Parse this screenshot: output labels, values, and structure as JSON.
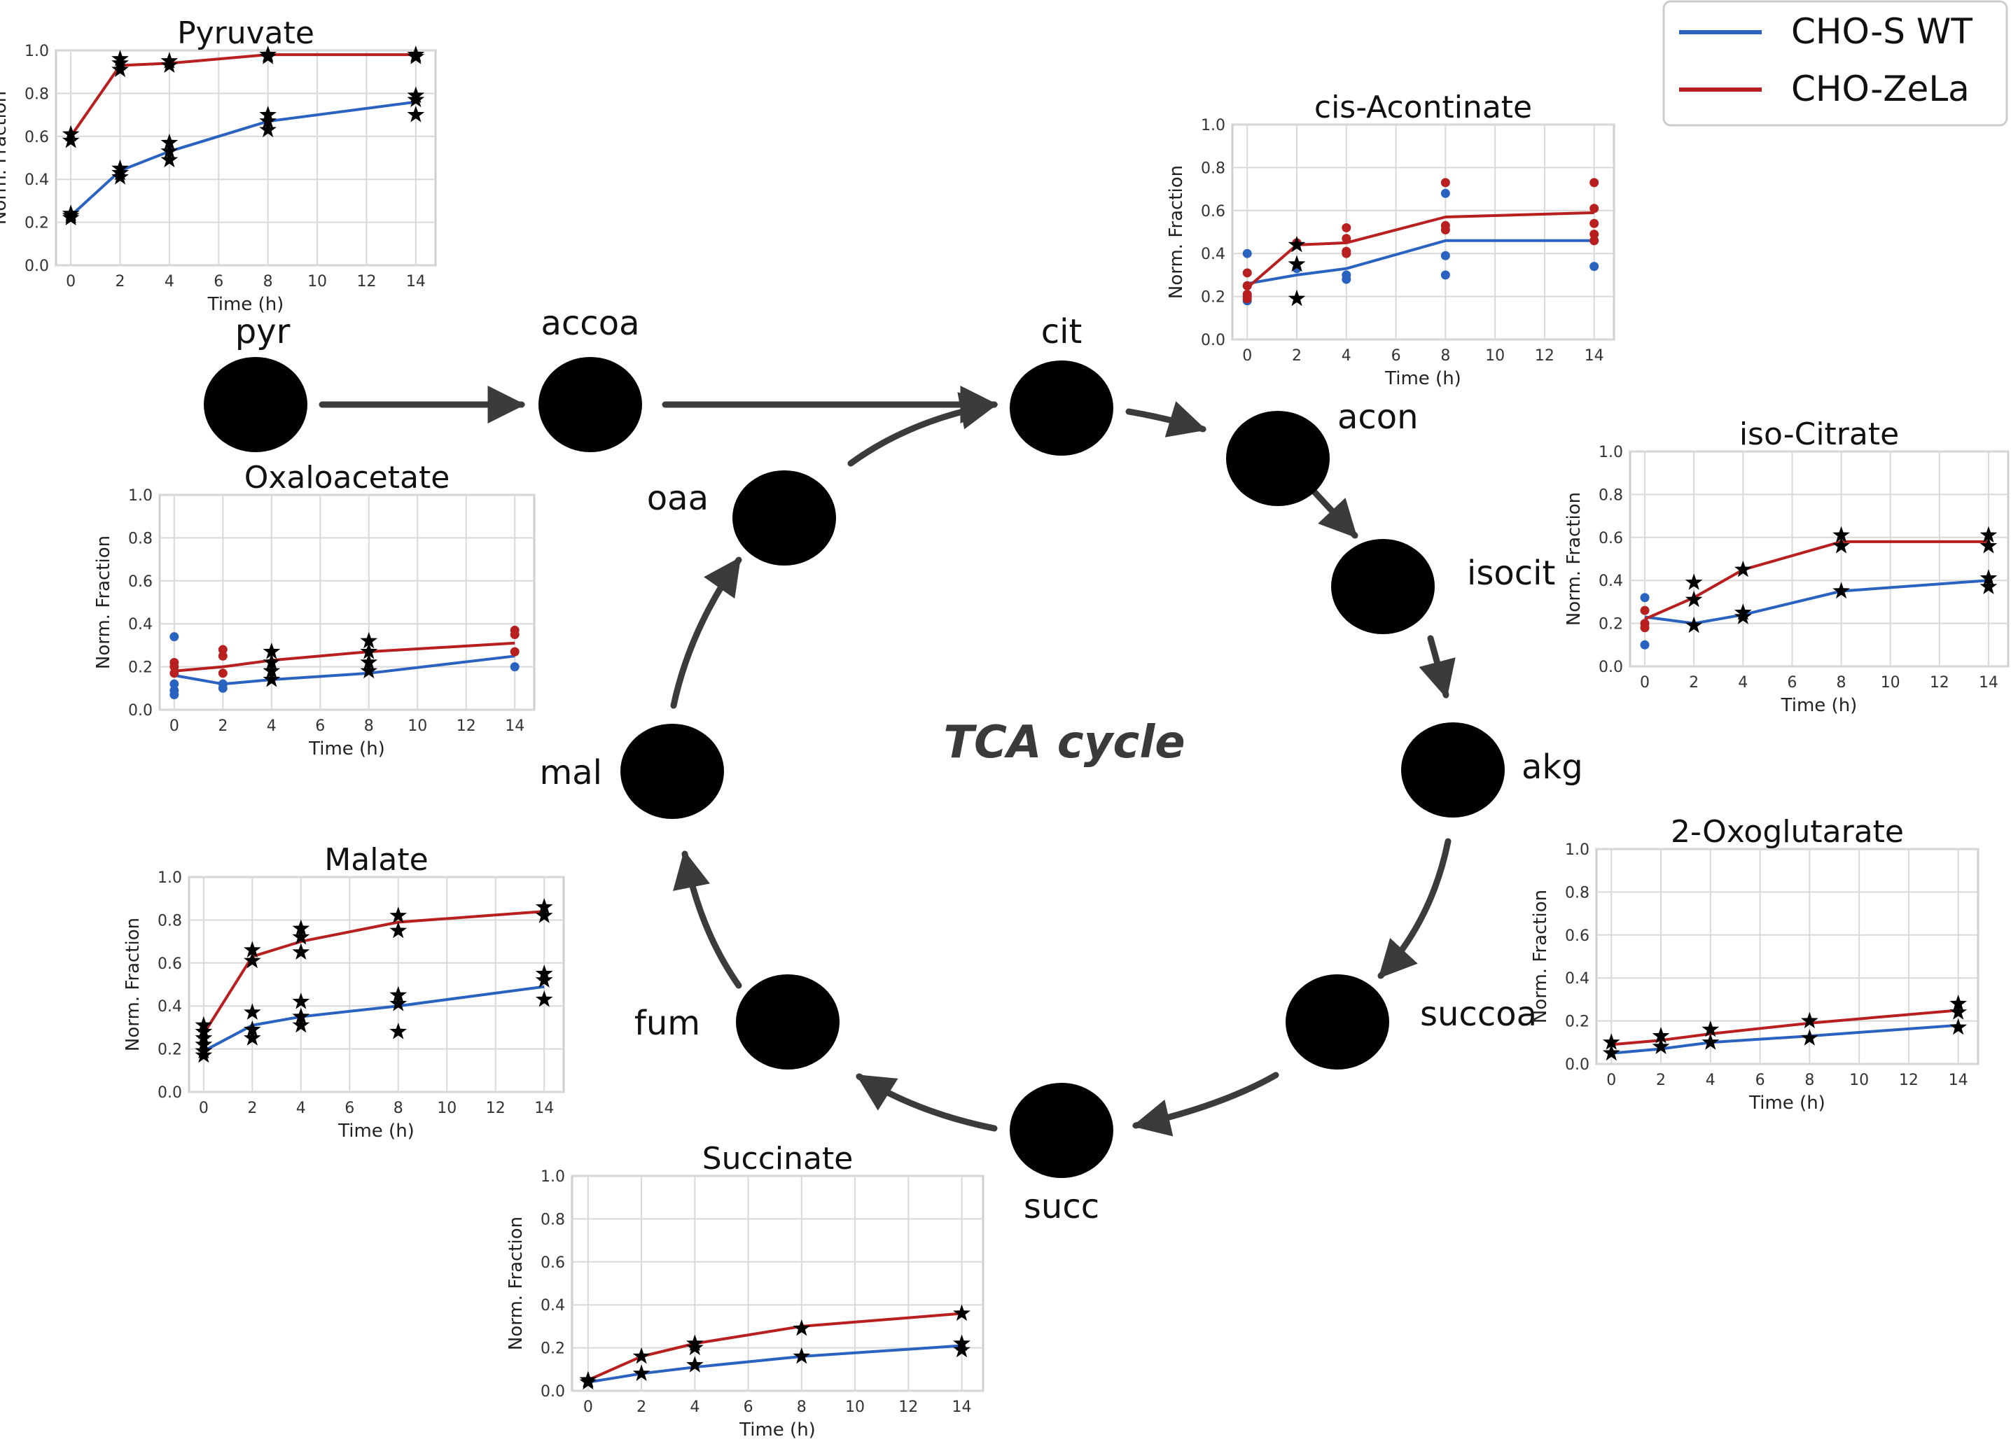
{
  "center_label": "TCA cycle",
  "legend": {
    "items": [
      {
        "label": "CHO-S WT",
        "color": "#2a62c0"
      },
      {
        "label": "CHO-ZeLa",
        "color": "#b81f1f"
      }
    ]
  },
  "nodes": [
    {
      "id": "pyr",
      "label": "pyr"
    },
    {
      "id": "accoa",
      "label": "accoa"
    },
    {
      "id": "cit",
      "label": "cit"
    },
    {
      "id": "acon",
      "label": "acon"
    },
    {
      "id": "isocit",
      "label": "isocit"
    },
    {
      "id": "akg",
      "label": "akg"
    },
    {
      "id": "succoa",
      "label": "succoa"
    },
    {
      "id": "succ",
      "label": "succ"
    },
    {
      "id": "fum",
      "label": "fum"
    },
    {
      "id": "mal",
      "label": "mal"
    },
    {
      "id": "oaa",
      "label": "oaa"
    }
  ],
  "edges": [
    {
      "from": "pyr",
      "to": "accoa"
    },
    {
      "from": "accoa",
      "to": "cit"
    },
    {
      "from": "oaa",
      "to": "cit"
    },
    {
      "from": "cit",
      "to": "acon"
    },
    {
      "from": "acon",
      "to": "isocit"
    },
    {
      "from": "isocit",
      "to": "akg"
    },
    {
      "from": "akg",
      "to": "succoa"
    },
    {
      "from": "succoa",
      "to": "succ"
    },
    {
      "from": "succ",
      "to": "fum"
    },
    {
      "from": "fum",
      "to": "mal"
    },
    {
      "from": "mal",
      "to": "oaa"
    }
  ],
  "chart_data": [
    {
      "type": "line",
      "title": "Pyruvate",
      "xlabel": "Time (h)",
      "ylabel": "Norm. Fraction",
      "xlim": [
        -0.6,
        14.8
      ],
      "ylim": [
        0,
        1
      ],
      "xticks": [
        0,
        2,
        4,
        6,
        8,
        10,
        12,
        14
      ],
      "yticks": [
        0.0,
        0.2,
        0.4,
        0.6,
        0.8,
        1.0
      ],
      "series": [
        {
          "name": "CHO-S WT",
          "x": [
            0,
            2,
            4,
            8,
            14
          ],
          "y": [
            0.23,
            0.44,
            0.53,
            0.67,
            0.76
          ]
        },
        {
          "name": "CHO-ZeLa",
          "x": [
            0,
            2,
            4,
            8,
            14
          ],
          "y": [
            0.6,
            0.93,
            0.94,
            0.98,
            0.98
          ]
        }
      ],
      "measured": [
        {
          "marker": "star",
          "color": "#000000",
          "x": [
            0,
            0,
            0,
            2,
            2,
            2,
            4,
            4,
            4,
            8,
            8,
            8,
            14,
            14,
            14,
            0,
            0,
            2,
            2,
            2,
            4,
            4,
            8,
            8,
            14,
            14
          ],
          "y": [
            0.22,
            0.23,
            0.24,
            0.41,
            0.43,
            0.45,
            0.49,
            0.53,
            0.57,
            0.63,
            0.67,
            0.7,
            0.7,
            0.77,
            0.79,
            0.58,
            0.61,
            0.91,
            0.94,
            0.96,
            0.93,
            0.95,
            0.97,
            0.98,
            0.97,
            0.98
          ]
        }
      ]
    },
    {
      "type": "line",
      "title": "cis-Acontinate",
      "xlabel": "Time (h)",
      "ylabel": "Norm. Fraction",
      "xlim": [
        -0.6,
        14.8
      ],
      "ylim": [
        0,
        1
      ],
      "xticks": [
        0,
        2,
        4,
        6,
        8,
        10,
        12,
        14
      ],
      "yticks": [
        0.0,
        0.2,
        0.4,
        0.6,
        0.8,
        1.0
      ],
      "series": [
        {
          "name": "CHO-S WT",
          "x": [
            0,
            2,
            4,
            8,
            14
          ],
          "y": [
            0.26,
            0.3,
            0.33,
            0.46,
            0.46
          ]
        },
        {
          "name": "CHO-ZeLa",
          "x": [
            0,
            2,
            4,
            8,
            14
          ],
          "y": [
            0.24,
            0.44,
            0.45,
            0.57,
            0.59
          ]
        }
      ],
      "measured": [
        {
          "marker": "dot",
          "color": "#2a62c0",
          "x": [
            0,
            0,
            0,
            0,
            2,
            4,
            4,
            8,
            8,
            8,
            14,
            14
          ],
          "y": [
            0.4,
            0.25,
            0.2,
            0.18,
            0.33,
            0.3,
            0.28,
            0.68,
            0.39,
            0.3,
            0.46,
            0.34
          ]
        },
        {
          "marker": "dot",
          "color": "#b81f1f",
          "x": [
            0,
            0,
            0,
            0,
            2,
            4,
            4,
            4,
            4,
            8,
            8,
            8,
            14,
            14,
            14,
            14,
            14
          ],
          "y": [
            0.31,
            0.25,
            0.21,
            0.19,
            0.45,
            0.52,
            0.47,
            0.41,
            0.4,
            0.73,
            0.53,
            0.51,
            0.73,
            0.61,
            0.54,
            0.49,
            0.46
          ]
        },
        {
          "marker": "star",
          "color": "#000000",
          "x": [
            2,
            2,
            2
          ],
          "y": [
            0.44,
            0.35,
            0.19
          ]
        }
      ]
    },
    {
      "type": "line",
      "title": "iso-Citrate",
      "xlabel": "Time (h)",
      "ylabel": "Norm. Fraction",
      "xlim": [
        -0.6,
        14.8
      ],
      "ylim": [
        0,
        1
      ],
      "xticks": [
        0,
        2,
        4,
        6,
        8,
        10,
        12,
        14
      ],
      "yticks": [
        0.0,
        0.2,
        0.4,
        0.6,
        0.8,
        1.0
      ],
      "series": [
        {
          "name": "CHO-S WT",
          "x": [
            0,
            2,
            4,
            8,
            14
          ],
          "y": [
            0.23,
            0.2,
            0.24,
            0.35,
            0.4
          ]
        },
        {
          "name": "CHO-ZeLa",
          "x": [
            0,
            2,
            4,
            8,
            14
          ],
          "y": [
            0.22,
            0.32,
            0.45,
            0.58,
            0.58
          ]
        }
      ],
      "measured": [
        {
          "marker": "dot",
          "color": "#2a62c0",
          "x": [
            0,
            0
          ],
          "y": [
            0.32,
            0.1
          ]
        },
        {
          "marker": "dot",
          "color": "#b81f1f",
          "x": [
            0,
            0,
            0
          ],
          "y": [
            0.26,
            0.2,
            0.18
          ]
        },
        {
          "marker": "star",
          "color": "#000000",
          "x": [
            2,
            2,
            2,
            4,
            4,
            4,
            8,
            8,
            8,
            14,
            14,
            14,
            14
          ],
          "y": [
            0.39,
            0.31,
            0.19,
            0.45,
            0.25,
            0.23,
            0.61,
            0.56,
            0.35,
            0.61,
            0.56,
            0.41,
            0.37
          ]
        }
      ]
    },
    {
      "type": "line",
      "title": "Oxaloacetate",
      "xlabel": "Time (h)",
      "ylabel": "Norm. Fraction",
      "xlim": [
        -0.6,
        14.8
      ],
      "ylim": [
        0,
        1
      ],
      "xticks": [
        0,
        2,
        4,
        6,
        8,
        10,
        12,
        14
      ],
      "yticks": [
        0.0,
        0.2,
        0.4,
        0.6,
        0.8,
        1.0
      ],
      "series": [
        {
          "name": "CHO-S WT",
          "x": [
            0,
            2,
            4,
            8,
            14
          ],
          "y": [
            0.16,
            0.12,
            0.14,
            0.17,
            0.25
          ]
        },
        {
          "name": "CHO-ZeLa",
          "x": [
            0,
            2,
            4,
            8,
            14
          ],
          "y": [
            0.18,
            0.2,
            0.23,
            0.27,
            0.31
          ]
        }
      ],
      "measured": [
        {
          "marker": "dot",
          "color": "#2a62c0",
          "x": [
            0,
            0,
            0,
            0,
            2,
            2,
            14
          ],
          "y": [
            0.34,
            0.12,
            0.09,
            0.07,
            0.12,
            0.1,
            0.2
          ]
        },
        {
          "marker": "dot",
          "color": "#b81f1f",
          "x": [
            0,
            0,
            0,
            2,
            2,
            2,
            14,
            14,
            14
          ],
          "y": [
            0.22,
            0.2,
            0.17,
            0.28,
            0.25,
            0.17,
            0.37,
            0.35,
            0.27
          ]
        },
        {
          "marker": "star",
          "color": "#000000",
          "x": [
            4,
            4,
            4,
            4,
            8,
            8,
            8,
            8
          ],
          "y": [
            0.27,
            0.22,
            0.18,
            0.14,
            0.32,
            0.27,
            0.22,
            0.18
          ]
        }
      ]
    },
    {
      "type": "line",
      "title": "Malate",
      "xlabel": "Time (h)",
      "ylabel": "Norm. Fraction",
      "xlim": [
        -0.6,
        14.8
      ],
      "ylim": [
        0,
        1
      ],
      "xticks": [
        0,
        2,
        4,
        6,
        8,
        10,
        12,
        14
      ],
      "yticks": [
        0.0,
        0.2,
        0.4,
        0.6,
        0.8,
        1.0
      ],
      "series": [
        {
          "name": "CHO-S WT",
          "x": [
            0,
            2,
            4,
            8,
            14
          ],
          "y": [
            0.19,
            0.31,
            0.35,
            0.4,
            0.49
          ]
        },
        {
          "name": "CHO-ZeLa",
          "x": [
            0,
            2,
            4,
            8,
            14
          ],
          "y": [
            0.27,
            0.63,
            0.7,
            0.79,
            0.84
          ]
        }
      ],
      "measured": [
        {
          "marker": "star",
          "color": "#000000",
          "x": [
            0,
            0,
            0,
            0,
            0,
            0,
            2,
            2,
            2,
            2,
            2,
            4,
            4,
            4,
            4,
            4,
            4,
            8,
            8,
            8,
            8,
            8,
            14,
            14,
            14,
            14,
            14
          ],
          "y": [
            0.31,
            0.28,
            0.25,
            0.22,
            0.19,
            0.17,
            0.66,
            0.61,
            0.37,
            0.29,
            0.25,
            0.76,
            0.72,
            0.65,
            0.42,
            0.35,
            0.31,
            0.82,
            0.75,
            0.45,
            0.41,
            0.28,
            0.86,
            0.82,
            0.55,
            0.52,
            0.43
          ]
        }
      ]
    },
    {
      "type": "line",
      "title": "Succinate",
      "xlabel": "Time (h)",
      "ylabel": "Norm. Fraction",
      "xlim": [
        -0.6,
        14.8
      ],
      "ylim": [
        0,
        1
      ],
      "xticks": [
        0,
        2,
        4,
        6,
        8,
        10,
        12,
        14
      ],
      "yticks": [
        0.0,
        0.2,
        0.4,
        0.6,
        0.8,
        1.0
      ],
      "series": [
        {
          "name": "CHO-S WT",
          "x": [
            0,
            2,
            4,
            8,
            14
          ],
          "y": [
            0.04,
            0.08,
            0.11,
            0.16,
            0.21
          ]
        },
        {
          "name": "CHO-ZeLa",
          "x": [
            0,
            2,
            4,
            8,
            14
          ],
          "y": [
            0.05,
            0.16,
            0.22,
            0.3,
            0.36
          ]
        }
      ],
      "measured": [
        {
          "marker": "star",
          "color": "#000000",
          "x": [
            0,
            0,
            2,
            2,
            4,
            4,
            4,
            8,
            8,
            14,
            14,
            14
          ],
          "y": [
            0.05,
            0.04,
            0.16,
            0.08,
            0.22,
            0.2,
            0.12,
            0.29,
            0.16,
            0.36,
            0.22,
            0.19
          ]
        }
      ]
    },
    {
      "type": "line",
      "title": "2-Oxoglutarate",
      "xlabel": "Time (h)",
      "ylabel": "Norm. Fraction",
      "xlim": [
        -0.6,
        14.8
      ],
      "ylim": [
        0,
        1
      ],
      "xticks": [
        0,
        2,
        4,
        6,
        8,
        10,
        12,
        14
      ],
      "yticks": [
        0.0,
        0.2,
        0.4,
        0.6,
        0.8,
        1.0
      ],
      "series": [
        {
          "name": "CHO-S WT",
          "x": [
            0,
            2,
            4,
            8,
            14
          ],
          "y": [
            0.05,
            0.07,
            0.1,
            0.13,
            0.18
          ]
        },
        {
          "name": "CHO-ZeLa",
          "x": [
            0,
            2,
            4,
            8,
            14
          ],
          "y": [
            0.09,
            0.11,
            0.14,
            0.19,
            0.25
          ]
        }
      ],
      "measured": [
        {
          "marker": "star",
          "color": "#000000",
          "x": [
            0,
            0,
            2,
            2,
            4,
            4,
            8,
            8,
            14,
            14,
            14
          ],
          "y": [
            0.1,
            0.05,
            0.13,
            0.08,
            0.16,
            0.1,
            0.2,
            0.12,
            0.28,
            0.24,
            0.17
          ]
        }
      ]
    }
  ]
}
